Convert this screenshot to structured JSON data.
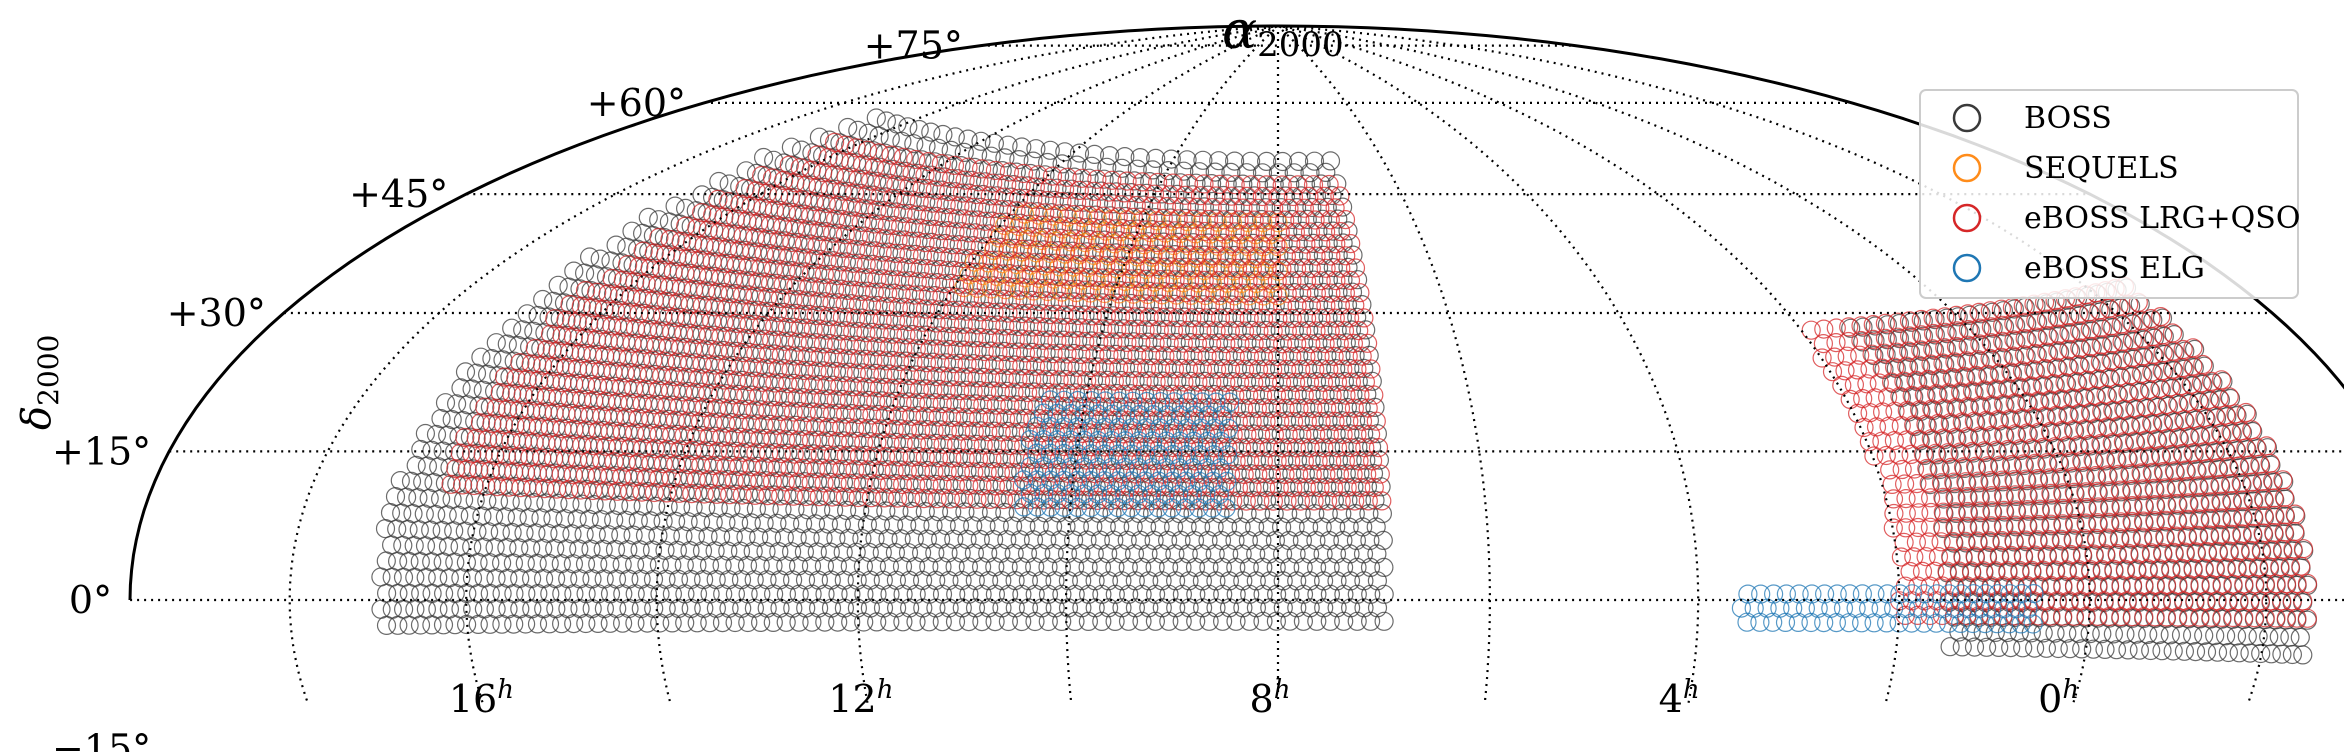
{
  "chart_data": {
    "type": "scatter",
    "projection": "Hammer-Aitoff",
    "title": "",
    "xlabel": "α",
    "xlabel_sub": "2000",
    "ylabel": "δ",
    "ylabel_sub": "2000",
    "ra_tick_labels": [
      {
        "hours": 16,
        "text": "16",
        "sup": "h"
      },
      {
        "hours": 12,
        "text": "12",
        "sup": "h"
      },
      {
        "hours": 8,
        "text": "8",
        "sup": "h"
      },
      {
        "hours": 4,
        "text": "4",
        "sup": "h"
      },
      {
        "hours": 0,
        "text": "0",
        "sup": "h"
      }
    ],
    "dec_tick_labels": [
      {
        "deg": 75,
        "text": "+75°"
      },
      {
        "deg": 60,
        "text": "+60°"
      },
      {
        "deg": 45,
        "text": "+45°"
      },
      {
        "deg": 30,
        "text": "+30°"
      },
      {
        "deg": 15,
        "text": "+15°"
      },
      {
        "deg": 0,
        "text": "0°"
      },
      {
        "deg": -15,
        "text": "−15°"
      }
    ],
    "ra_gridlines_hours": [
      0,
      2,
      4,
      6,
      8,
      10,
      12,
      14,
      16,
      18,
      20,
      22
    ],
    "dec_gridlines_deg": [
      -15,
      0,
      15,
      30,
      45,
      60,
      75
    ],
    "dec_range": [
      -15,
      90
    ],
    "central_ra_hours": 8,
    "grid": true,
    "legend_position": "top-right",
    "series": [
      {
        "name": "BOSS",
        "color": "#3a3a3a",
        "marker": "open-circle",
        "regions": [
          {
            "ra_hours": [
              7.0,
              17.0
            ],
            "dec_deg": [
              -3,
              67
            ]
          },
          {
            "ra_hours": [
              21.5,
              25.5
            ],
            "dec_deg": [
              -6,
              36
            ]
          }
        ]
      },
      {
        "name": "SEQUELS",
        "color": "#ff8c1a",
        "marker": "open-circle",
        "regions": [
          {
            "ra_hours": [
              8.0,
              12.0
            ],
            "dec_deg": [
              44,
              56
            ]
          }
        ]
      },
      {
        "name": "eBOSS LRG+QSO",
        "color": "#d62728",
        "marker": "open-circle",
        "regions": [
          {
            "ra_hours": [
              7.0,
              16.5
            ],
            "dec_deg": [
              14,
              62
            ]
          },
          {
            "ra_hours": [
              21.5,
              26.0
            ],
            "dec_deg": [
              -2,
              36
            ]
          }
        ]
      },
      {
        "name": "eBOSS ELG",
        "color": "#1f77b4",
        "marker": "open-circle",
        "regions": [
          {
            "ra_hours": [
              8.5,
              10.5
            ],
            "dec_deg": [
              13,
              30
            ]
          },
          {
            "ra_hours": [
              0.6,
              3.6
            ],
            "dec_deg": [
              -3,
              2
            ]
          }
        ]
      }
    ]
  }
}
